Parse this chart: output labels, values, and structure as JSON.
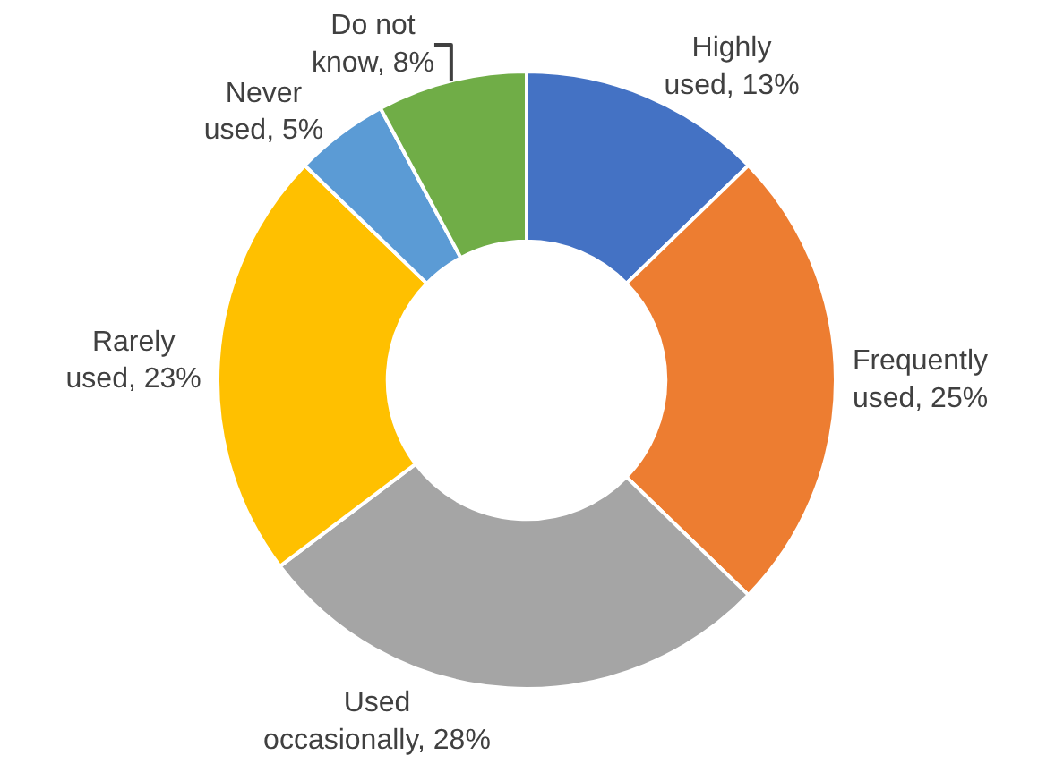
{
  "chart_data": {
    "type": "donut",
    "categories": [
      "Highly used",
      "Frequently used",
      "Used occasionally",
      "Rarely used",
      "Never used",
      "Do not know"
    ],
    "values": [
      13,
      25,
      28,
      23,
      5,
      8
    ],
    "value_labels": [
      "13%",
      "25%",
      "28%",
      "23%",
      "5%",
      "8%"
    ],
    "colors": [
      "#4472c4",
      "#ed7d31",
      "#a5a5a5",
      "#ffc000",
      "#5b9bd5",
      "#70ad47"
    ],
    "legend": false
  }
}
